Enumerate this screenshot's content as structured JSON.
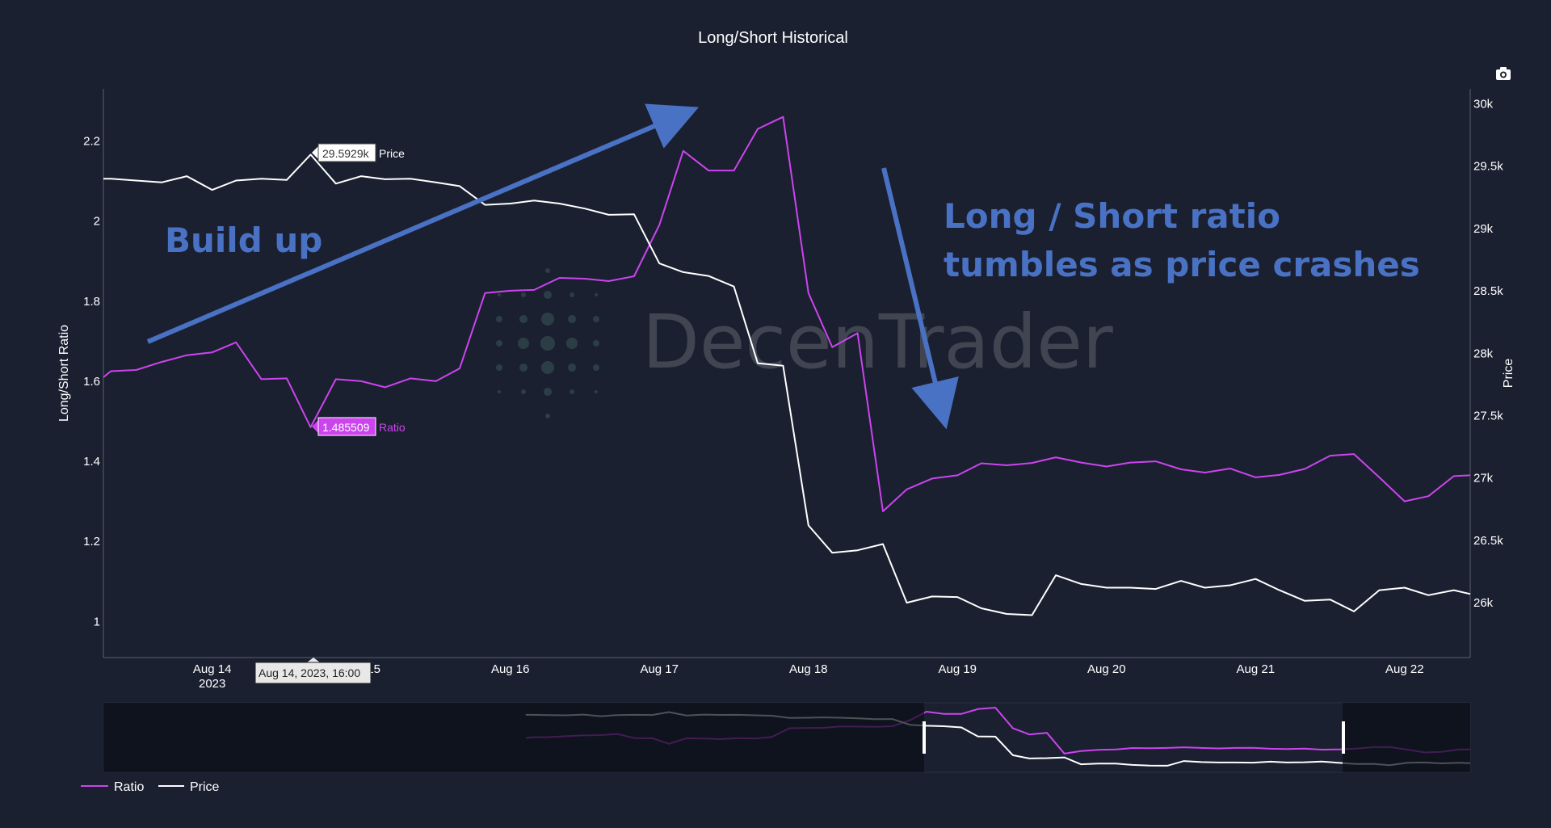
{
  "chart_data": {
    "type": "line",
    "title": "Long/Short Historical",
    "watermark": "DecenTrader",
    "y_left_label": "Long/Short Ratio",
    "y_right_label": "Price",
    "y_left_range": [
      0.91,
      2.33
    ],
    "y_right_range": [
      25560,
      30120
    ],
    "y_left_ticks": [
      {
        "value": 1,
        "label": "1"
      },
      {
        "value": 1.2,
        "label": "1.2"
      },
      {
        "value": 1.4,
        "label": "1.4"
      },
      {
        "value": 1.6,
        "label": "1.6"
      },
      {
        "value": 1.8,
        "label": "1.8"
      },
      {
        "value": 2,
        "label": "2"
      },
      {
        "value": 2.2,
        "label": "2.2"
      }
    ],
    "y_right_ticks": [
      {
        "value": 26000,
        "label": "26k"
      },
      {
        "value": 26500,
        "label": "26.5k"
      },
      {
        "value": 27000,
        "label": "27k"
      },
      {
        "value": 27500,
        "label": "27.5k"
      },
      {
        "value": 28000,
        "label": "28k"
      },
      {
        "value": 28500,
        "label": "28.5k"
      },
      {
        "value": 29000,
        "label": "29k"
      },
      {
        "value": 29500,
        "label": "29.5k"
      },
      {
        "value": 30000,
        "label": "30k"
      }
    ],
    "x_range_days": [
      0,
      9.17
    ],
    "x_ticks": [
      {
        "day": 0.73,
        "label": "Aug 14",
        "sublabel": "2023"
      },
      {
        "day": 1.73,
        "label": "Aug 15",
        "sublabel": ""
      },
      {
        "day": 2.73,
        "label": "Aug 16",
        "sublabel": ""
      },
      {
        "day": 3.73,
        "label": "Aug 17",
        "sublabel": ""
      },
      {
        "day": 4.73,
        "label": "Aug 18",
        "sublabel": ""
      },
      {
        "day": 5.73,
        "label": "Aug 19",
        "sublabel": ""
      },
      {
        "day": 6.73,
        "label": "Aug 20",
        "sublabel": ""
      },
      {
        "day": 7.73,
        "label": "Aug 21",
        "sublabel": ""
      },
      {
        "day": 8.73,
        "label": "Aug 22",
        "sublabel": ""
      }
    ],
    "series": [
      {
        "name": "Ratio",
        "axis": "left",
        "color": "#cc44ee",
        "x": [
          0,
          0.05,
          0.22,
          0.39,
          0.56,
          0.73,
          0.89,
          1.06,
          1.23,
          1.39,
          1.56,
          1.73,
          1.89,
          2.06,
          2.23,
          2.39,
          2.56,
          2.73,
          2.89,
          3.06,
          3.23,
          3.39,
          3.56,
          3.73,
          3.89,
          4.06,
          4.23,
          4.39,
          4.56,
          4.73,
          4.89,
          5.06,
          5.23,
          5.39,
          5.56,
          5.73,
          5.89,
          6.06,
          6.23,
          6.39,
          6.56,
          6.73,
          6.89,
          7.06,
          7.23,
          7.39,
          7.56,
          7.73,
          7.89,
          8.06,
          8.23,
          8.39,
          8.56,
          8.73,
          8.89,
          9.06,
          9.17
        ],
        "y": [
          1.61,
          1.625,
          1.628,
          1.648,
          1.665,
          1.672,
          1.697,
          1.605,
          1.607,
          1.485,
          1.605,
          1.6,
          1.585,
          1.607,
          1.6,
          1.632,
          1.82,
          1.826,
          1.828,
          1.858,
          1.856,
          1.85,
          1.862,
          1.99,
          2.175,
          2.126,
          2.126,
          2.23,
          2.26,
          1.82,
          1.685,
          1.72,
          1.275,
          1.33,
          1.357,
          1.365,
          1.395,
          1.39,
          1.396,
          1.41,
          1.397,
          1.387,
          1.397,
          1.4,
          1.38,
          1.372,
          1.382,
          1.36,
          1.366,
          1.381,
          1.414,
          1.418,
          1.36,
          1.3,
          1.313,
          1.363,
          1.365
        ]
      },
      {
        "name": "Price",
        "axis": "right",
        "color": "#ffffff",
        "x": [
          0,
          0.05,
          0.22,
          0.39,
          0.56,
          0.73,
          0.89,
          1.06,
          1.23,
          1.39,
          1.56,
          1.73,
          1.89,
          2.06,
          2.23,
          2.39,
          2.56,
          2.73,
          2.89,
          3.06,
          3.23,
          3.39,
          3.56,
          3.73,
          3.89,
          4.06,
          4.23,
          4.39,
          4.56,
          4.73,
          4.89,
          5.06,
          5.23,
          5.39,
          5.56,
          5.73,
          5.89,
          6.06,
          6.23,
          6.39,
          6.56,
          6.73,
          6.89,
          7.06,
          7.23,
          7.39,
          7.56,
          7.73,
          7.89,
          8.06,
          8.23,
          8.39,
          8.56,
          8.73,
          8.89,
          9.06,
          9.17
        ],
        "y": [
          29400,
          29400,
          29385,
          29370,
          29420,
          29310,
          29385,
          29400,
          29390,
          29593,
          29360,
          29420,
          29395,
          29400,
          29370,
          29340,
          29190,
          29200,
          29225,
          29200,
          29160,
          29110,
          29115,
          28720,
          28650,
          28620,
          28535,
          27920,
          27900,
          26620,
          26400,
          26420,
          26470,
          26000,
          26050,
          26045,
          25955,
          25910,
          25900,
          26220,
          26150,
          26120,
          26120,
          26110,
          26175,
          26120,
          26140,
          26190,
          26100,
          26015,
          26025,
          25930,
          26100,
          26120,
          26060,
          26100,
          26070
        ]
      }
    ],
    "hover": {
      "price_label": "29.5929k",
      "price_series": "Price",
      "ratio_label": "1.485509",
      "ratio_series": "Ratio",
      "x_label": "Aug 14, 2023, 16:00"
    },
    "annotations": [
      {
        "text": "Build up"
      },
      {
        "text": "Long / Short ratio"
      },
      {
        "text": "tumbles  as price crashes"
      }
    ],
    "legend": {
      "placement": "bottom-left",
      "items": [
        "Ratio",
        "Price"
      ]
    },
    "grid": false
  },
  "toolbar": {
    "camera_icon": "camera-icon"
  }
}
